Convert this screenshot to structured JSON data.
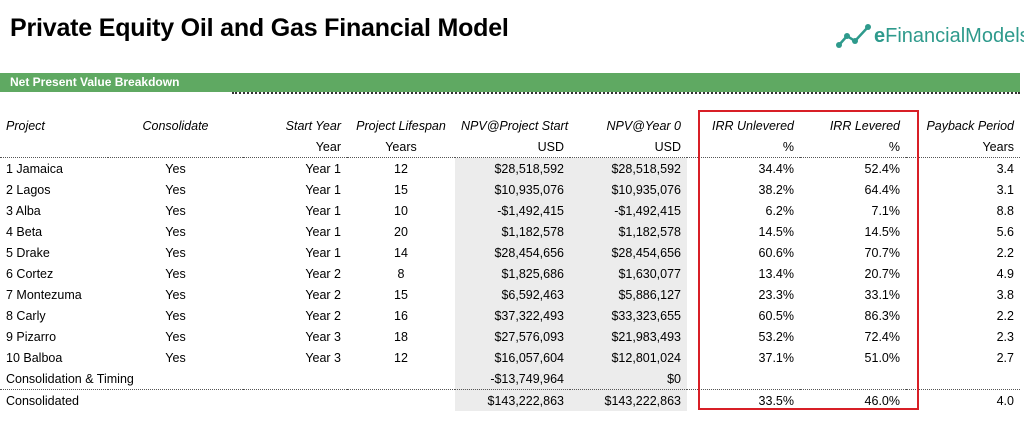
{
  "title": "Private Equity Oil and Gas Financial Model",
  "logo": {
    "prefix": "e",
    "text": "FinancialModels",
    "icon": "chart-line-icon",
    "color": "#2e9a8c"
  },
  "section": {
    "label": "Net Present Value Breakdown",
    "color": "#5fa962"
  },
  "columns": [
    "Project",
    "Consolidate",
    "Start Year",
    "Project Lifespan",
    "NPV@Project Start",
    "NPV@Year 0",
    "IRR Unlevered",
    "IRR Levered",
    "Payback Period"
  ],
  "units": [
    "",
    "",
    "Year",
    "Years",
    "USD",
    "USD",
    "%",
    "%",
    "Years"
  ],
  "rows": [
    [
      "1 Jamaica",
      "Yes",
      "Year 1",
      "12",
      "$28,518,592",
      "$28,518,592",
      "34.4%",
      "52.4%",
      "3.4"
    ],
    [
      "2 Lagos",
      "Yes",
      "Year 1",
      "15",
      "$10,935,076",
      "$10,935,076",
      "38.2%",
      "64.4%",
      "3.1"
    ],
    [
      "3 Alba",
      "Yes",
      "Year 1",
      "10",
      "-$1,492,415",
      "-$1,492,415",
      "6.2%",
      "7.1%",
      "8.8"
    ],
    [
      "4 Beta",
      "Yes",
      "Year 1",
      "20",
      "$1,182,578",
      "$1,182,578",
      "14.5%",
      "14.5%",
      "5.6"
    ],
    [
      "5 Drake",
      "Yes",
      "Year 1",
      "14",
      "$28,454,656",
      "$28,454,656",
      "60.6%",
      "70.7%",
      "2.2"
    ],
    [
      "6 Cortez",
      "Yes",
      "Year 2",
      "8",
      "$1,825,686",
      "$1,630,077",
      "13.4%",
      "20.7%",
      "4.9"
    ],
    [
      "7 Montezuma",
      "Yes",
      "Year 2",
      "15",
      "$6,592,463",
      "$5,886,127",
      "23.3%",
      "33.1%",
      "3.8"
    ],
    [
      "8 Carly",
      "Yes",
      "Year 2",
      "16",
      "$37,322,493",
      "$33,323,655",
      "60.5%",
      "86.3%",
      "2.2"
    ],
    [
      "9 Pizarro",
      "Yes",
      "Year 3",
      "18",
      "$27,576,093",
      "$21,983,493",
      "53.2%",
      "72.4%",
      "2.3"
    ],
    [
      "10 Balboa",
      "Yes",
      "Year 3",
      "12",
      "$16,057,604",
      "$12,801,024",
      "37.1%",
      "51.0%",
      "2.7"
    ]
  ],
  "timing_row": [
    "Consolidation & Timing",
    "",
    "",
    "",
    "-$13,749,964",
    "$0",
    "",
    "",
    ""
  ],
  "total_row": [
    "Consolidated",
    "",
    "",
    "",
    "$143,222,863",
    "$143,222,863",
    "33.5%",
    "46.0%",
    "4.0"
  ],
  "highlight_color": "#d81f26"
}
